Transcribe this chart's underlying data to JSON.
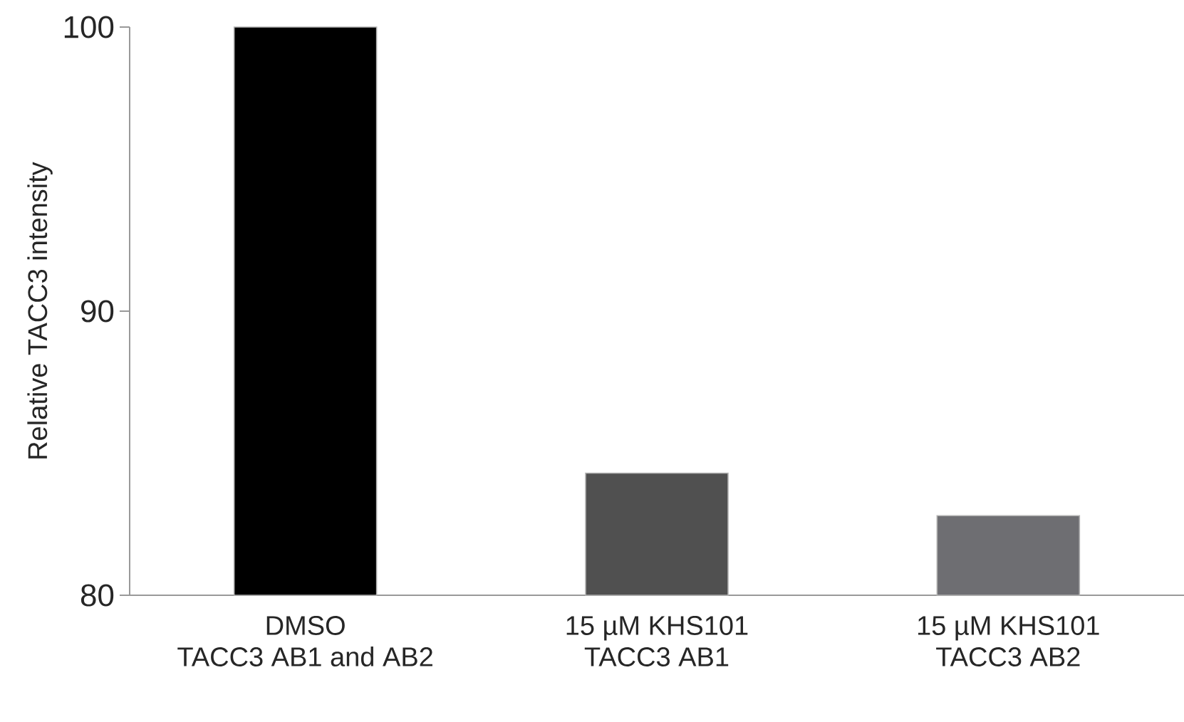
{
  "chart_data": {
    "type": "bar",
    "ylabel": "Relative TACC3 intensity",
    "categories": [
      "DMSO\nTACC3 AB1 and AB2",
      "15 µM KHS101\nTACC3 AB1",
      "15 µM KHS101\nTACC3 AB2"
    ],
    "values": [
      100,
      84.3,
      82.8
    ],
    "colors": [
      "#000000",
      "#505050",
      "#6e6e72"
    ],
    "ylim": [
      80,
      100
    ],
    "yticks": [
      80,
      90,
      100
    ]
  }
}
